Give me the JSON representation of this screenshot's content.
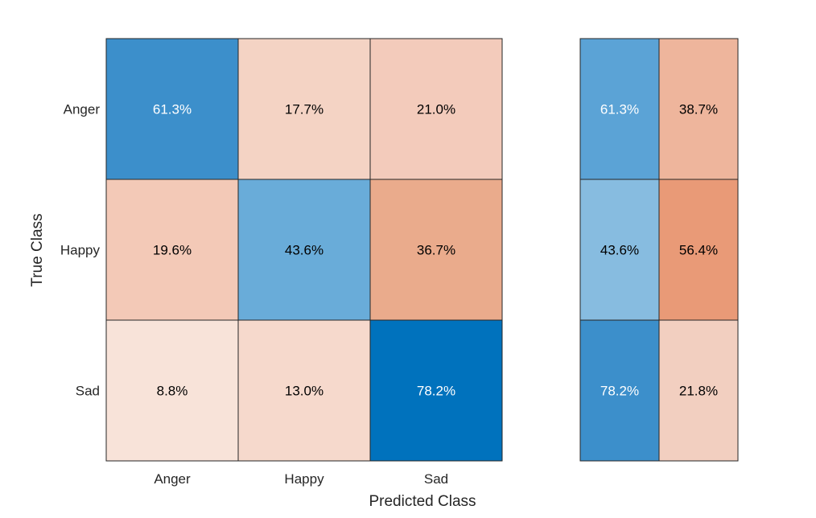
{
  "chart_data": [
    {
      "type": "heatmap",
      "title": "",
      "xlabel": "Predicted Class",
      "ylabel": "True Class",
      "x_categories": [
        "Anger",
        "Happy",
        "Sad"
      ],
      "y_categories": [
        "Anger",
        "Happy",
        "Sad"
      ],
      "values": [
        [
          61.3,
          17.7,
          21.0
        ],
        [
          19.6,
          43.6,
          36.7
        ],
        [
          8.8,
          13.0,
          78.2
        ]
      ],
      "labels": [
        [
          "61.3%",
          "17.7%",
          "21.0%"
        ],
        [
          "19.6%",
          "43.6%",
          "36.7%"
        ],
        [
          "8.8%",
          "13.0%",
          "78.2%"
        ]
      ],
      "colors": [
        [
          "#3c8fcb",
          "#f4d3c4",
          "#f3cbbb"
        ],
        [
          "#f3c9b7",
          "#69acd9",
          "#eaab8c"
        ],
        [
          "#f8e3d9",
          "#f6d9cc",
          "#0072bd"
        ]
      ]
    },
    {
      "type": "heatmap",
      "title": "",
      "y_categories": [
        "Anger",
        "Happy",
        "Sad"
      ],
      "values": [
        [
          61.3,
          38.7
        ],
        [
          43.6,
          56.4
        ],
        [
          78.2,
          21.8
        ]
      ],
      "labels": [
        [
          "61.3%",
          "38.7%"
        ],
        [
          "43.6%",
          "56.4%"
        ],
        [
          "78.2%",
          "21.8%"
        ]
      ],
      "colors": [
        [
          "#5ba3d6",
          "#eeb59c"
        ],
        [
          "#87bce0",
          "#e99a77"
        ],
        [
          "#3c8fcb",
          "#f2cfc0"
        ]
      ]
    }
  ],
  "style": {
    "light_text_color": "#ffffff",
    "dark_text_color": "#000000",
    "border_color": "#262626"
  }
}
